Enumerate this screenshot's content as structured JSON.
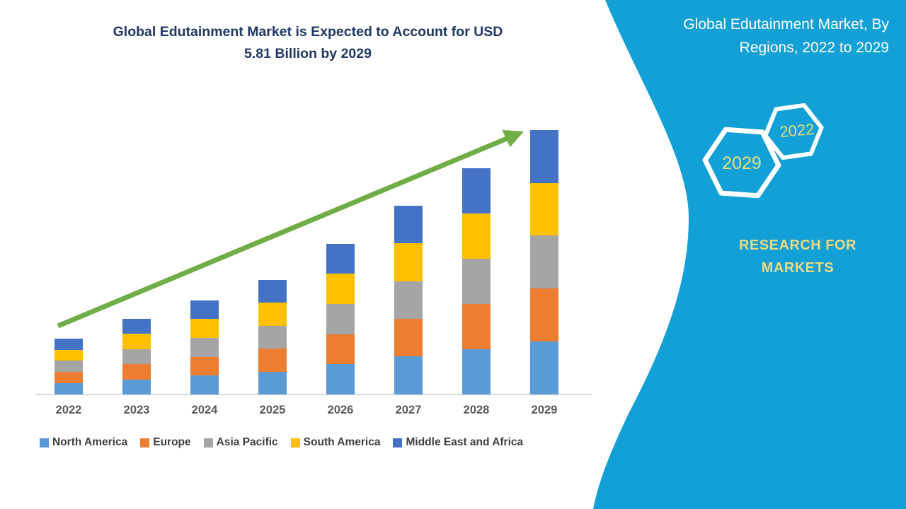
{
  "header": {
    "title_line1": "Global Edutainment Market is Expected to Account for USD",
    "title_line2": "5.81 Billion by 2029"
  },
  "chart_data": {
    "type": "bar",
    "stacked": true,
    "title": "Global Edutainment Market is Expected to Account for USD 5.81 Billion by 2029",
    "unit": "USD Billion",
    "categories": [
      "2022",
      "2023",
      "2024",
      "2025",
      "2026",
      "2027",
      "2028",
      "2029"
    ],
    "series": [
      {
        "name": "North America",
        "color": "#5B9BD5",
        "values": [
          0.246,
          0.332,
          0.414,
          0.504,
          0.662,
          0.83,
          0.994,
          1.162
        ]
      },
      {
        "name": "Europe",
        "color": "#ED7D31",
        "values": [
          0.246,
          0.332,
          0.414,
          0.504,
          0.662,
          0.83,
          0.994,
          1.162
        ]
      },
      {
        "name": "Asia Pacific",
        "color": "#A5A5A5",
        "values": [
          0.246,
          0.332,
          0.414,
          0.504,
          0.662,
          0.83,
          0.994,
          1.162
        ]
      },
      {
        "name": "South America",
        "color": "#FFC000",
        "values": [
          0.246,
          0.332,
          0.414,
          0.504,
          0.662,
          0.83,
          0.994,
          1.162
        ]
      },
      {
        "name": "Middle East and Africa",
        "color": "#4472C4",
        "values": [
          0.246,
          0.332,
          0.414,
          0.504,
          0.662,
          0.83,
          0.994,
          1.162
        ]
      }
    ],
    "totals_estimated": [
      1.23,
      1.66,
      2.07,
      2.52,
      3.31,
      4.15,
      4.97,
      5.81
    ],
    "ylim": [
      0,
      6
    ],
    "y_axis_visible": false,
    "gridlines": false,
    "legend_position": "bottom",
    "annotations": [
      "green upward growth trend arrow from 2022 bar to 2029 bar"
    ]
  },
  "side_panel": {
    "title_line1": "Global Edutainment Market, By",
    "title_line2": "Regions, 2022 to 2029",
    "hexagons": [
      {
        "label": "2029"
      },
      {
        "label": "2022"
      }
    ],
    "brand_line1": "RESEARCH FOR",
    "brand_line2": "MARKETS"
  },
  "colors": {
    "panel_background": "#12A0D7",
    "chart_title": "#1F3864",
    "arrow_green": "#70AD47",
    "axis_label": "#595959",
    "legend_text": "#3F3F3F",
    "axis_line": "#D9D9D9",
    "hexagon_outline": "#FFFFFF",
    "hexagon_year_text": "#E7E07A",
    "brand_text": "#F0DA7E",
    "panel_title_text": "#FFFFFF"
  }
}
